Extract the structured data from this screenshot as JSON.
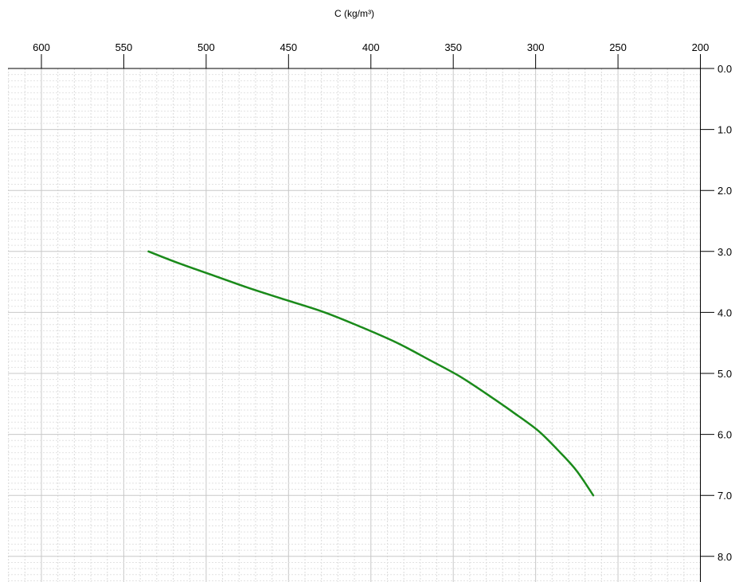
{
  "chart_data": {
    "type": "line",
    "xlabel": "C (kg/m³)",
    "ylabel": "",
    "x_axis_position": "top",
    "x_reversed": true,
    "y_axis_position": "right",
    "y_inverted": true,
    "xlim": [
      620,
      200
    ],
    "ylim": [
      0.0,
      8.3
    ],
    "x_ticks": [
      600,
      550,
      500,
      450,
      400,
      350,
      300,
      250,
      200
    ],
    "x_tick_labels": [
      "600",
      "550",
      "500",
      "450",
      "400",
      "350",
      "300",
      "250",
      "200"
    ],
    "y_ticks": [
      0,
      1,
      2,
      3,
      4,
      5,
      6,
      7,
      8
    ],
    "y_tick_labels": [
      "0.0",
      "1.0",
      "2.0",
      "3.0",
      "4.0",
      "5.0",
      "6.0",
      "7.0",
      "8.0"
    ],
    "grid": true,
    "legend": "none",
    "series": [
      {
        "color": "#1a8a1a",
        "points": [
          {
            "x": 535,
            "y": 3.0
          },
          {
            "x": 516,
            "y": 3.2
          },
          {
            "x": 495,
            "y": 3.4
          },
          {
            "x": 474,
            "y": 3.6
          },
          {
            "x": 451,
            "y": 3.8
          },
          {
            "x": 428,
            "y": 4.0
          },
          {
            "x": 405,
            "y": 4.25
          },
          {
            "x": 384,
            "y": 4.5
          },
          {
            "x": 363,
            "y": 4.8
          },
          {
            "x": 346,
            "y": 5.05
          },
          {
            "x": 329,
            "y": 5.35
          },
          {
            "x": 313,
            "y": 5.65
          },
          {
            "x": 298,
            "y": 5.95
          },
          {
            "x": 285,
            "y": 6.3
          },
          {
            "x": 275,
            "y": 6.6
          },
          {
            "x": 265,
            "y": 7.0
          }
        ]
      }
    ]
  }
}
